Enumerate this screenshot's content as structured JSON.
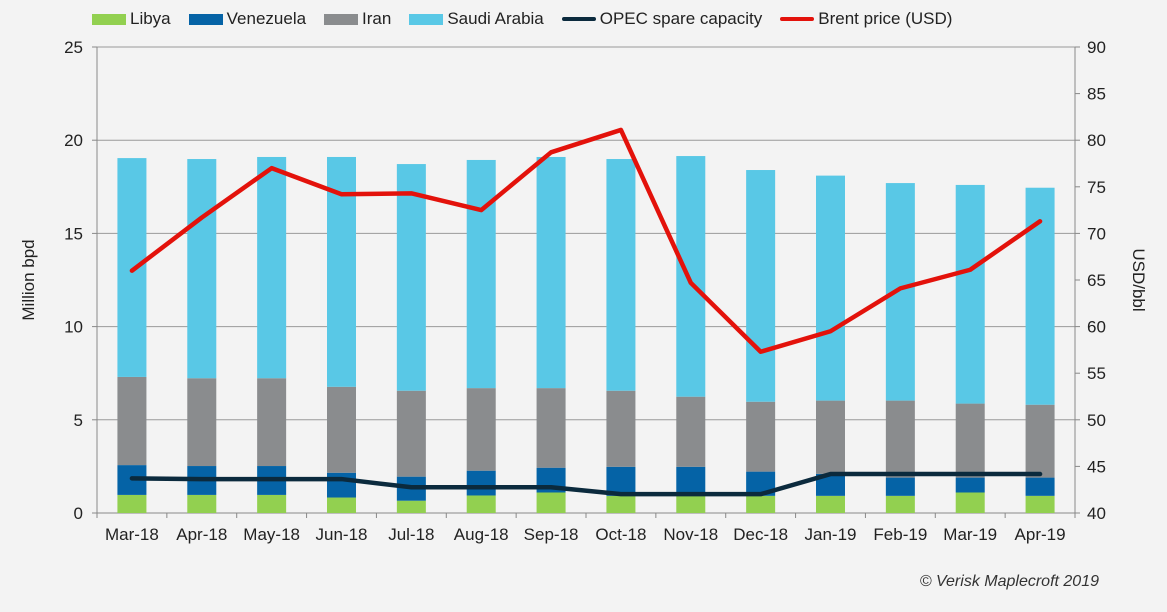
{
  "chart_data": {
    "type": "bar",
    "stacked": true,
    "categories": [
      "Mar-18",
      "Apr-18",
      "May-18",
      "Jun-18",
      "Jul-18",
      "Aug-18",
      "Sep-18",
      "Oct-18",
      "Nov-18",
      "Dec-18",
      "Jan-19",
      "Feb-19",
      "Mar-19",
      "Apr-19"
    ],
    "ylabel": "Million bpd",
    "ylim": [
      0,
      25
    ],
    "yticks": [
      "0",
      "5",
      "10",
      "15",
      "20",
      "25"
    ],
    "y2label": "USD/bbl",
    "y2lim": [
      40,
      90
    ],
    "y2ticks": [
      "40",
      "45",
      "50",
      "55",
      "60",
      "65",
      "70",
      "75",
      "80",
      "85",
      "90"
    ],
    "grid": true,
    "legend_position": "top",
    "series": [
      {
        "name": "Libya",
        "kind": "bar",
        "color": "#92d050",
        "values": [
          0.97,
          0.97,
          0.97,
          0.83,
          0.66,
          0.94,
          1.1,
          0.92,
          0.92,
          0.92,
          0.92,
          0.92,
          1.1,
          0.92
        ]
      },
      {
        "name": "Venezuela",
        "kind": "bar",
        "color": "#0563a6",
        "values": [
          1.6,
          1.55,
          1.55,
          1.33,
          1.29,
          1.33,
          1.33,
          1.56,
          1.56,
          1.3,
          1.18,
          0.98,
          0.8,
          0.98
        ]
      },
      {
        "name": "Iran",
        "kind": "bar",
        "color": "#8a8c8e",
        "values": [
          4.73,
          4.71,
          4.71,
          4.61,
          4.61,
          4.43,
          4.27,
          4.08,
          3.76,
          3.75,
          3.93,
          4.13,
          3.97,
          3.91
        ]
      },
      {
        "name": "Saudi Arabia",
        "kind": "bar",
        "color": "#59c8e6",
        "values": [
          11.74,
          11.76,
          11.87,
          12.33,
          12.16,
          12.24,
          12.4,
          12.43,
          12.91,
          12.43,
          12.07,
          11.67,
          11.73,
          11.64
        ]
      },
      {
        "name": "OPEC spare capacity",
        "kind": "line",
        "axis": "left",
        "color": "#0b2a3d",
        "values": [
          1.86,
          1.82,
          1.82,
          1.82,
          1.38,
          1.38,
          1.38,
          1.01,
          1.01,
          1.01,
          2.09,
          2.09,
          2.09,
          2.09
        ]
      },
      {
        "name": "Brent price (USD)",
        "kind": "line",
        "axis": "right",
        "color": "#e3120b",
        "values": [
          66.0,
          71.7,
          77.0,
          74.2,
          74.3,
          72.5,
          78.7,
          81.1,
          64.7,
          57.3,
          59.5,
          64.1,
          66.1,
          71.3
        ]
      }
    ]
  },
  "copyright": "© Verisk Maplecroft 2019"
}
